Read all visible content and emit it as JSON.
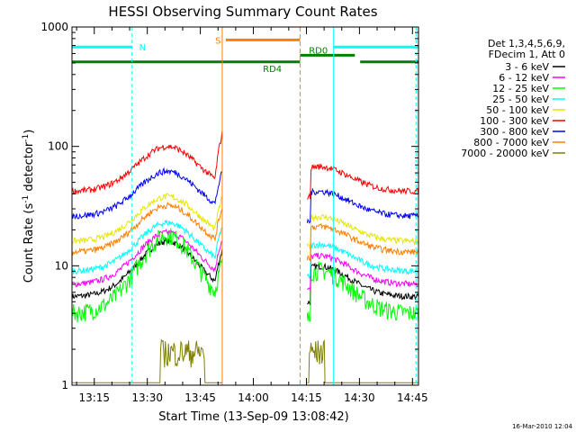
{
  "chart_data": {
    "type": "line",
    "title": "HESSI Observing Summary Count Rates",
    "xlabel": "Start Time (13-Sep-09 13:08:42)",
    "ylabel_main": "Count Rate (s",
    "ylabel_sup1": "-1",
    "ylabel_mid": " detector",
    "ylabel_sup2": "-1",
    "ylabel_end": ")",
    "yscale": "log",
    "ylim": [
      1,
      1000
    ],
    "xlim_minutes": [
      0,
      98
    ],
    "x_tick_minutes": [
      6.3,
      21.3,
      36.3,
      51.3,
      66.3,
      81.3,
      96.3
    ],
    "x_tick_labels": [
      "13:15",
      "13:30",
      "13:45",
      "14:00",
      "14:15",
      "14:30",
      "14:45"
    ],
    "y_ticks": [
      1,
      10,
      100,
      1000
    ],
    "y_tick_labels": [
      "1",
      "10",
      "100",
      "1000"
    ],
    "timestamp": "16-Mar-2010 12:04",
    "legend": {
      "header_lines": [
        "Det 1,3,4,5,6,9,",
        "FDecim 1, Att 0"
      ],
      "placement": "right"
    },
    "series": [
      {
        "name": "3 - 6 keV",
        "color": "#000000",
        "base": 5.5,
        "peak": 16
      },
      {
        "name": "6 - 12 keV",
        "color": "#ff00ff",
        "base": 7,
        "peak": 19
      },
      {
        "name": "12 - 25 keV",
        "color": "#00ff00",
        "base": 4,
        "peak": 18
      },
      {
        "name": "25 - 50 keV",
        "color": "#00ffff",
        "base": 9,
        "peak": 23
      },
      {
        "name": "50 - 100 keV",
        "color": "#e6e600",
        "base": 16,
        "peak": 38
      },
      {
        "name": "100 - 300 keV",
        "color": "#ff0000",
        "base": 42,
        "peak": 100
      },
      {
        "name": "300 - 800 keV",
        "color": "#0000ff",
        "base": 26,
        "peak": 62
      },
      {
        "name": "800 - 7000 keV",
        "color": "#ff8000",
        "base": 13,
        "peak": 32
      },
      {
        "name": "7000 - 20000 keV",
        "color": "#808000",
        "base": 1.05,
        "peak": 2.2
      }
    ],
    "annotations": [
      {
        "label": "N",
        "color": "#00ffff",
        "value": 680
      },
      {
        "label": "S",
        "color": "#ff8000",
        "value": 780
      },
      {
        "label": "RD0",
        "color": "#008000",
        "value": 580
      },
      {
        "label": "RD4",
        "color": "#008000",
        "value": 510
      }
    ],
    "colors": {
      "night": "#00ffff",
      "saa": "#ff8000",
      "decim": "#008000"
    }
  }
}
